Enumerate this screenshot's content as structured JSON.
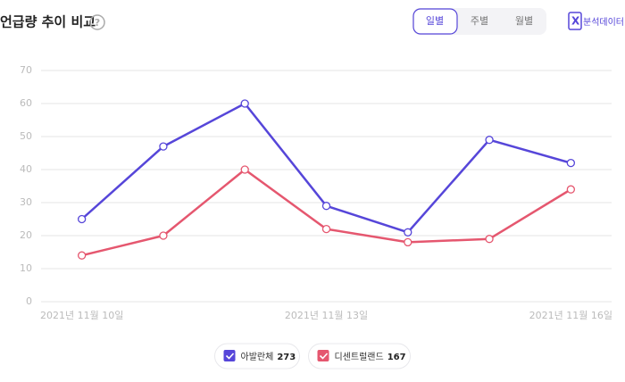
{
  "header": {
    "title": "언급량 추이 비교",
    "help": "?",
    "tabs": [
      "일별",
      "주별",
      "월별"
    ],
    "active_tab": 0,
    "export": {
      "icon": "X",
      "label": "분석데이터"
    }
  },
  "chart_data": {
    "type": "line",
    "categories": [
      "2021년 11월 10일",
      null,
      null,
      "2021년 11월 13일",
      null,
      null,
      "2021년 11월 16일"
    ],
    "series": [
      {
        "name": "아발란체",
        "color": "#5646d9",
        "total": 273,
        "values": [
          25,
          47,
          60,
          29,
          21,
          49,
          42
        ]
      },
      {
        "name": "디센트럴랜드",
        "color": "#e5576f",
        "total": 167,
        "values": [
          14,
          20,
          40,
          22,
          18,
          19,
          34
        ]
      }
    ],
    "ylim": [
      0,
      70
    ],
    "yticks": [
      0,
      10,
      20,
      30,
      40,
      50,
      60,
      70
    ],
    "grid": true
  }
}
